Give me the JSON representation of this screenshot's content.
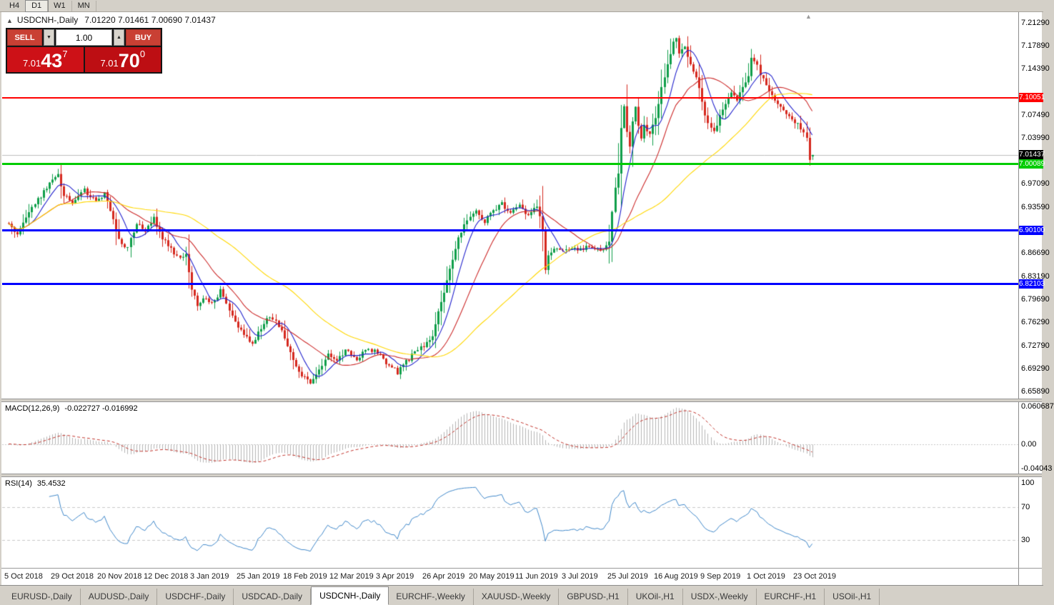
{
  "toolbar": {
    "timeframes": [
      {
        "label": "H4",
        "active": false
      },
      {
        "label": "D1",
        "active": true
      },
      {
        "label": "W1",
        "active": false
      },
      {
        "label": "MN",
        "active": false
      }
    ]
  },
  "chart": {
    "collapse_icon": "▲",
    "title_symbol": "USDCNH-,Daily",
    "title_ohlc": "7.01220 7.01461 7.00690 7.01437",
    "shift_marker_icon": "▲"
  },
  "trade_panel": {
    "sell_label": "SELL",
    "buy_label": "BUY",
    "volume": "1.00",
    "volume_down_icon": "▼",
    "volume_up_icon": "▲",
    "sell_price": {
      "prefix": "7.01",
      "big": "43",
      "sup": "7"
    },
    "buy_price": {
      "prefix": "7.01",
      "big": "70",
      "sup": "0"
    }
  },
  "price_axis": {
    "ticks": [
      {
        "text": "7.21290",
        "value": 7.2129
      },
      {
        "text": "7.17890",
        "value": 7.1789
      },
      {
        "text": "7.14390",
        "value": 7.1439
      },
      {
        "text": "7.07490",
        "value": 7.0749
      },
      {
        "text": "7.03990",
        "value": 7.0399
      },
      {
        "text": "6.97090",
        "value": 6.9709
      },
      {
        "text": "6.93590",
        "value": 6.9359
      },
      {
        "text": "6.86690",
        "value": 6.8669
      },
      {
        "text": "6.83190",
        "value": 6.8319
      },
      {
        "text": "6.79690",
        "value": 6.7969
      },
      {
        "text": "6.76290",
        "value": 6.7629
      },
      {
        "text": "6.72790",
        "value": 6.7279
      },
      {
        "text": "6.69290",
        "value": 6.6929
      },
      {
        "text": "6.65890",
        "value": 6.6589
      }
    ],
    "markers": [
      {
        "text": "7.10051",
        "value": 7.10051,
        "bg": "#ff0000",
        "fg": "#ffffff",
        "name": "resistance-line-price-label",
        "interactable": true
      },
      {
        "text": "7.01437",
        "value": 7.01437,
        "bg": "#000000",
        "fg": "#ffffff",
        "name": "bid-price-label",
        "interactable": false
      },
      {
        "text": "7.00089",
        "value": 7.00089,
        "bg": "#00cc00",
        "fg": "#ffffff",
        "name": "support-line-price-label",
        "interactable": true
      },
      {
        "text": "6.90100",
        "value": 6.901,
        "bg": "#0000ff",
        "fg": "#ffffff",
        "name": "blue-line-upper-price-label",
        "interactable": true
      },
      {
        "text": "6.82103",
        "value": 6.82103,
        "bg": "#0000ff",
        "fg": "#ffffff",
        "name": "blue-line-lower-price-label",
        "interactable": true
      }
    ]
  },
  "hlines": [
    {
      "value": 7.10051,
      "color": "#ff0000",
      "thickness": 2,
      "name": "resistance-hline"
    },
    {
      "value": 7.00089,
      "color": "#00cc00",
      "thickness": 3,
      "name": "support-hline"
    },
    {
      "value": 6.901,
      "color": "#0000ff",
      "thickness": 3,
      "name": "blue-hline-upper"
    },
    {
      "value": 6.82103,
      "color": "#0000ff",
      "thickness": 3,
      "name": "blue-hline-lower"
    }
  ],
  "macd": {
    "title": "MACD(12,26,9)",
    "values_text": "-0.022727 -0.016992",
    "fast": 12,
    "slow": 26,
    "signal": 9,
    "axis": [
      {
        "text": "0.060687",
        "value": 0.060687
      },
      {
        "text": "0.00",
        "value": 0
      },
      {
        "text": "-0.04043",
        "value": -0.04043
      }
    ]
  },
  "rsi": {
    "title": "RSI(14)",
    "value_text": "35.4532",
    "period": 14,
    "levels": [
      70,
      30
    ],
    "axis": [
      {
        "text": "100",
        "value": 100
      },
      {
        "text": "70",
        "value": 70
      },
      {
        "text": "30",
        "value": 30
      }
    ]
  },
  "date_axis": [
    "5 Oct 2018",
    "29 Oct 2018",
    "20 Nov 2018",
    "12 Dec 2018",
    "3 Jan 2019",
    "25 Jan 2019",
    "18 Feb 2019",
    "12 Mar 2019",
    "3 Apr 2019",
    "26 Apr 2019",
    "20 May 2019",
    "11 Jun 2019",
    "3 Jul 2019",
    "25 Jul 2019",
    "16 Aug 2019",
    "9 Sep 2019",
    "1 Oct 2019",
    "23 Oct 2019"
  ],
  "tabs": [
    {
      "label": "EURUSD-,Daily",
      "active": false
    },
    {
      "label": "AUDUSD-,Daily",
      "active": false
    },
    {
      "label": "USDCHF-,Daily",
      "active": false
    },
    {
      "label": "USDCAD-,Daily",
      "active": false
    },
    {
      "label": "USDCNH-,Daily",
      "active": true
    },
    {
      "label": "EURCHF-,Weekly",
      "active": false
    },
    {
      "label": "XAUUSD-,Weekly",
      "active": false
    },
    {
      "label": "GBPUSD-,H1",
      "active": false
    },
    {
      "label": "UKOil-,H1",
      "active": false
    },
    {
      "label": "USDX-,Weekly",
      "active": false
    },
    {
      "label": "EURCHF-,H1",
      "active": false
    },
    {
      "label": "USOil-,H1",
      "active": false
    }
  ],
  "chart_data": {
    "type": "candlestick",
    "symbol": "USDCNH",
    "timeframe": "Daily",
    "last_candle": {
      "open": 7.0122,
      "high": 7.01461,
      "low": 7.0069,
      "close": 7.01437
    },
    "y_range": [
      6.6482,
      7.229
    ],
    "n_candles": 278,
    "seed": 20190417,
    "ma_periods": [
      8,
      20,
      55
    ],
    "colors": {
      "up": "#0f9e4a",
      "down": "#d5281e",
      "ma_fast": "#2222cc",
      "ma_mid": "#cc2a2a",
      "ma_slow": "#ffd700",
      "rsi_line": "#3f87c9",
      "macd_hist": "#b4b4b4",
      "macd_signal": "#c03028",
      "bid_line": "#bcbcbc"
    },
    "levels": {
      "resistance": 7.10051,
      "support": 7.00089,
      "blue_upper": 6.901,
      "blue_lower": 6.82103,
      "bid": 7.01437
    },
    "indicator_readings": {
      "macd_main": -0.022727,
      "macd_signal": -0.016992,
      "rsi": 35.4532
    },
    "waypoints": [
      [
        0,
        6.912
      ],
      [
        3,
        6.893
      ],
      [
        7,
        6.93
      ],
      [
        11,
        6.952
      ],
      [
        15,
        6.978
      ],
      [
        17,
        6.984
      ],
      [
        19,
        6.955
      ],
      [
        22,
        6.938
      ],
      [
        26,
        6.962
      ],
      [
        30,
        6.944
      ],
      [
        33,
        6.956
      ],
      [
        36,
        6.92
      ],
      [
        38,
        6.885
      ],
      [
        41,
        6.876
      ],
      [
        44,
        6.912
      ],
      [
        47,
        6.898
      ],
      [
        50,
        6.918
      ],
      [
        53,
        6.89
      ],
      [
        56,
        6.872
      ],
      [
        59,
        6.86
      ],
      [
        61,
        6.868
      ],
      [
        63,
        6.815
      ],
      [
        65,
        6.785
      ],
      [
        67,
        6.802
      ],
      [
        70,
        6.79
      ],
      [
        73,
        6.81
      ],
      [
        76,
        6.778
      ],
      [
        79,
        6.754
      ],
      [
        82,
        6.742
      ],
      [
        84,
        6.728
      ],
      [
        86,
        6.746
      ],
      [
        89,
        6.772
      ],
      [
        92,
        6.763
      ],
      [
        95,
        6.74
      ],
      [
        98,
        6.706
      ],
      [
        101,
        6.684
      ],
      [
        104,
        6.671
      ],
      [
        107,
        6.694
      ],
      [
        110,
        6.714
      ],
      [
        113,
        6.705
      ],
      [
        116,
        6.722
      ],
      [
        120,
        6.709
      ],
      [
        124,
        6.724
      ],
      [
        128,
        6.713
      ],
      [
        131,
        6.697
      ],
      [
        134,
        6.688
      ],
      [
        137,
        6.704
      ],
      [
        140,
        6.717
      ],
      [
        143,
        6.729
      ],
      [
        146,
        6.741
      ],
      [
        148,
        6.776
      ],
      [
        150,
        6.808
      ],
      [
        152,
        6.843
      ],
      [
        154,
        6.876
      ],
      [
        156,
        6.9
      ],
      [
        158,
        6.916
      ],
      [
        161,
        6.931
      ],
      [
        164,
        6.914
      ],
      [
        167,
        6.929
      ],
      [
        170,
        6.941
      ],
      [
        173,
        6.927
      ],
      [
        176,
        6.937
      ],
      [
        179,
        6.924
      ],
      [
        182,
        6.937
      ],
      [
        184,
        6.902
      ],
      [
        185,
        6.845
      ],
      [
        186,
        6.866
      ],
      [
        188,
        6.874
      ],
      [
        191,
        6.869
      ],
      [
        194,
        6.877
      ],
      [
        197,
        6.871
      ],
      [
        200,
        6.879
      ],
      [
        203,
        6.871
      ],
      [
        206,
        6.877
      ],
      [
        207,
        6.886
      ],
      [
        208,
        6.928
      ],
      [
        209,
        6.962
      ],
      [
        210,
        6.985
      ],
      [
        211,
        7.058
      ],
      [
        212,
        7.086
      ],
      [
        213,
        7.052
      ],
      [
        214,
        7.028
      ],
      [
        215,
        7.064
      ],
      [
        216,
        7.088
      ],
      [
        217,
        7.058
      ],
      [
        218,
        7.036
      ],
      [
        219,
        7.06
      ],
      [
        221,
        7.046
      ],
      [
        223,
        7.072
      ],
      [
        225,
        7.116
      ],
      [
        227,
        7.152
      ],
      [
        229,
        7.186
      ],
      [
        230,
        7.192
      ],
      [
        231,
        7.166
      ],
      [
        233,
        7.177
      ],
      [
        235,
        7.148
      ],
      [
        237,
        7.13
      ],
      [
        239,
        7.094
      ],
      [
        241,
        7.06
      ],
      [
        243,
        7.047
      ],
      [
        245,
        7.074
      ],
      [
        247,
        7.094
      ],
      [
        249,
        7.11
      ],
      [
        251,
        7.097
      ],
      [
        253,
        7.116
      ],
      [
        255,
        7.136
      ],
      [
        256,
        7.16
      ],
      [
        258,
        7.147
      ],
      [
        260,
        7.127
      ],
      [
        262,
        7.11
      ],
      [
        264,
        7.097
      ],
      [
        266,
        7.087
      ],
      [
        268,
        7.077
      ],
      [
        270,
        7.071
      ],
      [
        272,
        7.06
      ],
      [
        274,
        7.047
      ],
      [
        275,
        7.04
      ],
      [
        276,
        7.005
      ],
      [
        277,
        7.0144
      ]
    ]
  }
}
